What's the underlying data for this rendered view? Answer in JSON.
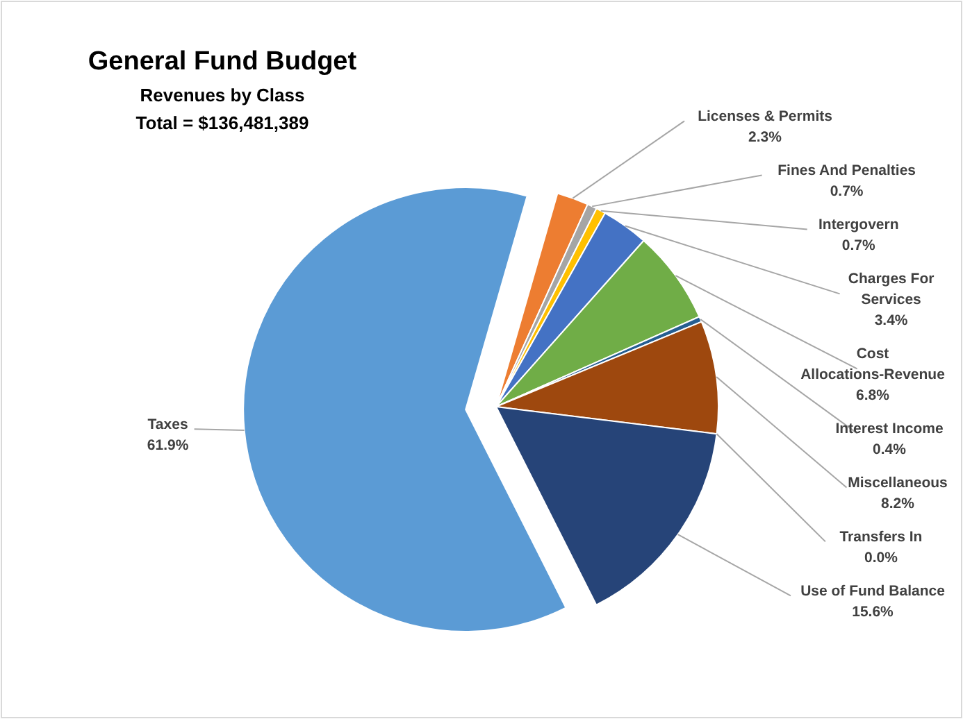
{
  "chart_data": {
    "type": "pie",
    "title": "General Fund Budget",
    "subtitle": "Revenues by Class",
    "annotations": [
      "Total = $136,481,389"
    ],
    "categories": [
      "Licenses & Permits",
      "Fines And Penalties",
      "Intergovern",
      "Charges For Services",
      "Cost Allocations-Revenue",
      "Interest Income",
      "Miscellaneous",
      "Transfers In",
      "Use of Fund Balance",
      "Taxes"
    ],
    "values": [
      2.3,
      0.7,
      0.7,
      3.4,
      6.8,
      0.4,
      8.2,
      0.0,
      15.6,
      61.9
    ],
    "colors": [
      "#ed7d31",
      "#a5a5a5",
      "#ffc000",
      "#4472c4",
      "#70ad47",
      "#255e91",
      "#9e480e",
      "#636363",
      "#264478",
      "#5b9bd5"
    ],
    "value_labels": [
      "2.3%",
      "0.7%",
      "0.7%",
      "3.4%",
      "6.8%",
      "0.4%",
      "8.2%",
      "0.0%",
      "15.6%",
      "61.9%"
    ]
  }
}
